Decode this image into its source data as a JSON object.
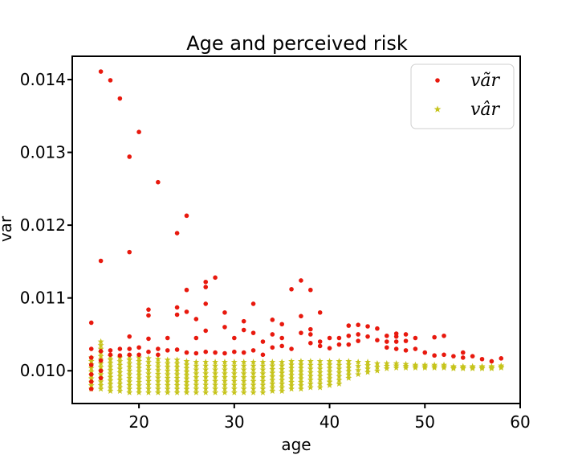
{
  "chart_data": {
    "type": "scatter",
    "title": "Age and perceived risk",
    "xlabel": "age",
    "ylabel": "var",
    "xlim": [
      13,
      60
    ],
    "ylim": [
      0.00955,
      0.01432
    ],
    "xticks": [
      20,
      30,
      40,
      50,
      60
    ],
    "yticks": [
      0.01,
      0.011,
      0.012,
      0.013,
      0.014
    ],
    "ytick_labels": [
      "0.010",
      "0.011",
      "0.012",
      "0.013",
      "0.014"
    ],
    "grid": false,
    "legend_position": "top-right",
    "series": [
      {
        "name": "vãr",
        "marker": "dot",
        "color": "#e8190e",
        "points": [
          [
            15,
            0.01066
          ],
          [
            15,
            0.0103
          ],
          [
            15,
            0.01018
          ],
          [
            15,
            0.01008
          ],
          [
            15,
            0.00995
          ],
          [
            15,
            0.00985
          ],
          [
            15,
            0.00975
          ],
          [
            16,
            0.01151
          ],
          [
            16,
            0.01027
          ],
          [
            16,
            0.01014
          ],
          [
            16,
            0.01
          ],
          [
            16,
            0.0099
          ],
          [
            16,
            0.01411
          ],
          [
            17,
            0.01399
          ],
          [
            18,
            0.01374
          ],
          [
            19,
            0.01294
          ],
          [
            19,
            0.01163
          ],
          [
            20,
            0.01328
          ],
          [
            22,
            0.01259
          ],
          [
            17,
            0.01028
          ],
          [
            17,
            0.01022
          ],
          [
            18,
            0.0103
          ],
          [
            18,
            0.01021
          ],
          [
            19,
            0.01047
          ],
          [
            19,
            0.0103
          ],
          [
            19,
            0.01022
          ],
          [
            20,
            0.01032
          ],
          [
            20,
            0.01022
          ],
          [
            21,
            0.01084
          ],
          [
            21,
            0.01076
          ],
          [
            21,
            0.01044
          ],
          [
            21,
            0.01026
          ],
          [
            22,
            0.0103
          ],
          [
            22,
            0.01022
          ],
          [
            23,
            0.01045
          ],
          [
            23,
            0.01028
          ],
          [
            24,
            0.01189
          ],
          [
            24,
            0.01087
          ],
          [
            24,
            0.01077
          ],
          [
            24,
            0.01029
          ],
          [
            25,
            0.01213
          ],
          [
            25,
            0.01111
          ],
          [
            25,
            0.01081
          ],
          [
            25,
            0.01025
          ],
          [
            26,
            0.01071
          ],
          [
            26,
            0.01045
          ],
          [
            26,
            0.01024
          ],
          [
            27,
            0.01122
          ],
          [
            27,
            0.01115
          ],
          [
            27,
            0.01092
          ],
          [
            27,
            0.01055
          ],
          [
            27,
            0.01026
          ],
          [
            28,
            0.01128
          ],
          [
            28,
            0.01025
          ],
          [
            29,
            0.0108
          ],
          [
            29,
            0.0106
          ],
          [
            29,
            0.01024
          ],
          [
            30,
            0.01045
          ],
          [
            30,
            0.01026
          ],
          [
            31,
            0.01068
          ],
          [
            31,
            0.01056
          ],
          [
            31,
            0.01025
          ],
          [
            32,
            0.01092
          ],
          [
            32,
            0.01052
          ],
          [
            32,
            0.01028
          ],
          [
            33,
            0.0104
          ],
          [
            33,
            0.01022
          ],
          [
            34,
            0.0107
          ],
          [
            34,
            0.0105
          ],
          [
            34,
            0.01032
          ],
          [
            35,
            0.01064
          ],
          [
            35,
            0.01045
          ],
          [
            35,
            0.01034
          ],
          [
            36,
            0.01112
          ],
          [
            36,
            0.0103
          ],
          [
            37,
            0.01124
          ],
          [
            37,
            0.01075
          ],
          [
            37,
            0.01052
          ],
          [
            38,
            0.01111
          ],
          [
            38,
            0.01057
          ],
          [
            38,
            0.0105
          ],
          [
            38,
            0.01038
          ],
          [
            39,
            0.0108
          ],
          [
            39,
            0.0104
          ],
          [
            39,
            0.01034
          ],
          [
            40,
            0.01045
          ],
          [
            40,
            0.01031
          ],
          [
            41,
            0.01045
          ],
          [
            41,
            0.01036
          ],
          [
            42,
            0.01062
          ],
          [
            42,
            0.01048
          ],
          [
            42,
            0.01036
          ],
          [
            43,
            0.01063
          ],
          [
            43,
            0.0105
          ],
          [
            43,
            0.01041
          ],
          [
            44,
            0.01061
          ],
          [
            44,
            0.01047
          ],
          [
            45,
            0.01058
          ],
          [
            45,
            0.01042
          ],
          [
            46,
            0.01048
          ],
          [
            46,
            0.0104
          ],
          [
            46,
            0.01032
          ],
          [
            47,
            0.01051
          ],
          [
            47,
            0.01047
          ],
          [
            47,
            0.0104
          ],
          [
            47,
            0.0103
          ],
          [
            48,
            0.0105
          ],
          [
            48,
            0.01041
          ],
          [
            48,
            0.01028
          ],
          [
            49,
            0.01045
          ],
          [
            49,
            0.0103
          ],
          [
            50,
            0.01025
          ],
          [
            51,
            0.01046
          ],
          [
            51,
            0.01021
          ],
          [
            52,
            0.01048
          ],
          [
            52,
            0.01022
          ],
          [
            53,
            0.0102
          ],
          [
            54,
            0.01025
          ],
          [
            54,
            0.01018
          ],
          [
            55,
            0.0102
          ],
          [
            56,
            0.01016
          ],
          [
            57,
            0.01013
          ],
          [
            58,
            0.01017
          ]
        ]
      },
      {
        "name": "vâr",
        "marker": "star",
        "color": "#c6c41c",
        "bands": [
          [
            15,
            0.00975,
            0.01018
          ],
          [
            16,
            0.00975,
            0.0104
          ],
          [
            17,
            0.00972,
            0.0102
          ],
          [
            18,
            0.00972,
            0.01018
          ],
          [
            19,
            0.0097,
            0.0102
          ],
          [
            20,
            0.0097,
            0.01018
          ],
          [
            21,
            0.0097,
            0.01017
          ],
          [
            22,
            0.0097,
            0.01016
          ],
          [
            23,
            0.0097,
            0.01015
          ],
          [
            24,
            0.0097,
            0.01015
          ],
          [
            25,
            0.0097,
            0.01013
          ],
          [
            26,
            0.0097,
            0.01012
          ],
          [
            27,
            0.0097,
            0.01012
          ],
          [
            28,
            0.0097,
            0.01012
          ],
          [
            29,
            0.0097,
            0.01012
          ],
          [
            30,
            0.0097,
            0.01012
          ],
          [
            31,
            0.0097,
            0.01012
          ],
          [
            32,
            0.0097,
            0.01012
          ],
          [
            33,
            0.0097,
            0.01012
          ],
          [
            34,
            0.00972,
            0.01012
          ],
          [
            35,
            0.00972,
            0.01012
          ],
          [
            36,
            0.00975,
            0.01013
          ],
          [
            37,
            0.00975,
            0.01013
          ],
          [
            38,
            0.00977,
            0.01013
          ],
          [
            39,
            0.00977,
            0.01013
          ],
          [
            40,
            0.0098,
            0.01013
          ],
          [
            41,
            0.00982,
            0.01013
          ],
          [
            42,
            0.0099,
            0.01013
          ],
          [
            43,
            0.00995,
            0.01012
          ],
          [
            44,
            0.00998,
            0.01012
          ],
          [
            45,
            0.01,
            0.0101
          ],
          [
            46,
            0.01003,
            0.0101
          ],
          [
            47,
            0.01004,
            0.0101
          ],
          [
            48,
            0.01004,
            0.01009
          ],
          [
            49,
            0.01004,
            0.01008
          ],
          [
            50,
            0.01004,
            0.01008
          ],
          [
            51,
            0.01004,
            0.01008
          ],
          [
            52,
            0.01004,
            0.01008
          ],
          [
            53,
            0.01003,
            0.01006
          ],
          [
            54,
            0.01003,
            0.01006
          ],
          [
            55,
            0.01003,
            0.01006
          ],
          [
            56,
            0.01003,
            0.01006
          ],
          [
            57,
            0.01003,
            0.01006
          ],
          [
            58,
            0.01004,
            0.01007
          ]
        ]
      }
    ]
  }
}
